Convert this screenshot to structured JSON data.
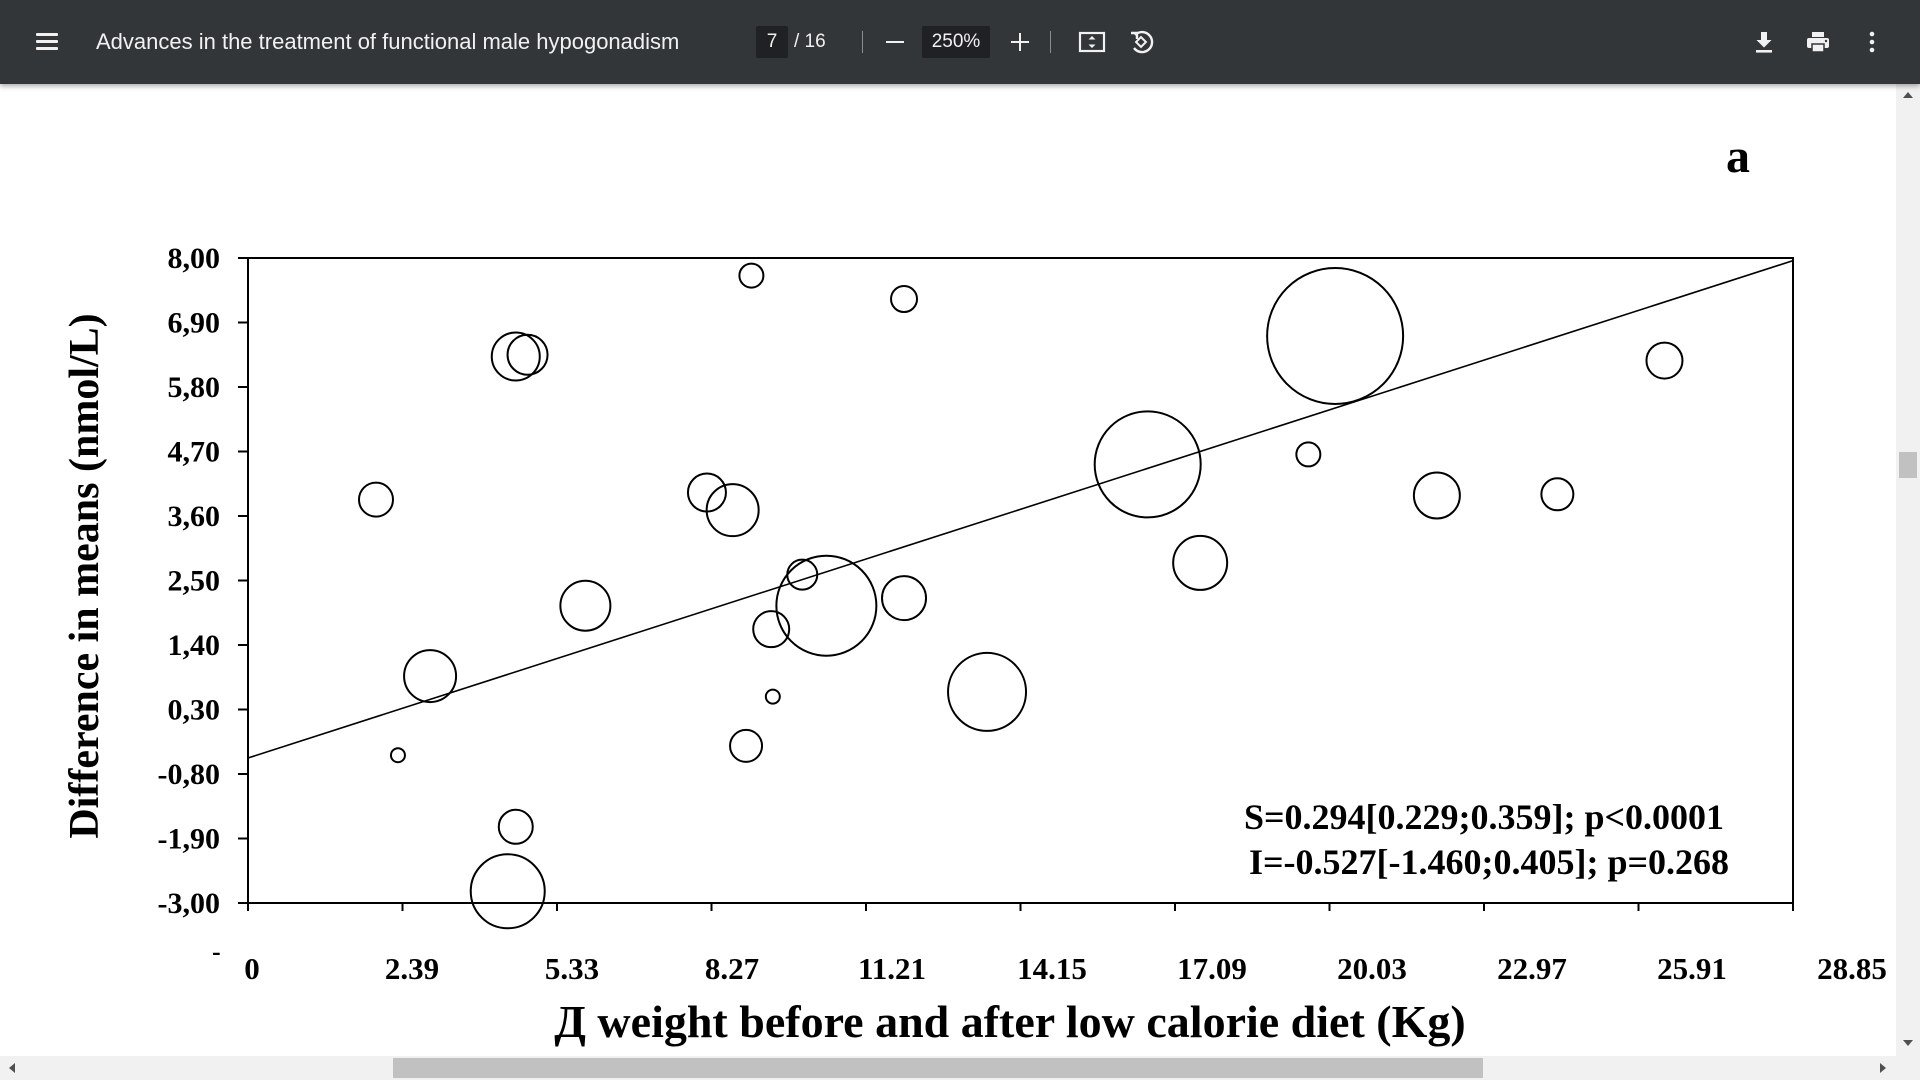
{
  "toolbar": {
    "title": "Advances in the treatment of functional male hypogonadism",
    "page_current": "7",
    "page_total": "/ 16",
    "zoom": "250%",
    "icons": [
      "menu-icon",
      "zoom-out-icon",
      "zoom-in-icon",
      "fit-page-icon",
      "rotate-icon",
      "download-icon",
      "print-icon",
      "more-options-icon"
    ]
  },
  "figure": {
    "panel_label": "a"
  },
  "chart_data": {
    "type": "scatter",
    "subtype": "bubble",
    "xlabel": "Д weight before and after low calorie diet (Kg)",
    "ylabel": "Difference in means (nmol/L)",
    "x_ticks": [
      "0",
      "2.39",
      "5.33",
      "8.27",
      "11.21",
      "14.15",
      "17.09",
      "20.03",
      "22.97",
      "25.91",
      "28.85"
    ],
    "y_ticks": [
      "8,00",
      "6,90",
      "5,80",
      "4,70",
      "3,60",
      "2,50",
      "1,40",
      "0,30",
      "-0,80",
      "-1,90",
      "-3,00"
    ],
    "xlim": [
      0,
      28.85
    ],
    "ylim": [
      -3.0,
      8.0
    ],
    "stray_mark": "-",
    "grid": false,
    "annotations": [
      "S=0.294[0.229;0.359]; p<0.0001",
      "I=-0.527[-1.460;0.405]; p=0.268"
    ],
    "regression_line": {
      "slope": 0.294,
      "intercept": -0.527
    },
    "bubbles": [
      {
        "x": 2.39,
        "y": 3.88,
        "r": 17
      },
      {
        "x": 2.8,
        "y": -0.48,
        "r": 7
      },
      {
        "x": 3.4,
        "y": 0.87,
        "r": 26
      },
      {
        "x": 5.0,
        "y": 6.32,
        "r": 24
      },
      {
        "x": 5.22,
        "y": 6.35,
        "r": 20
      },
      {
        "x": 5.0,
        "y": -1.7,
        "r": 17
      },
      {
        "x": 4.85,
        "y": -2.8,
        "r": 37
      },
      {
        "x": 6.3,
        "y": 2.07,
        "r": 25
      },
      {
        "x": 8.57,
        "y": 4.0,
        "r": 19
      },
      {
        "x": 9.05,
        "y": 3.7,
        "r": 26
      },
      {
        "x": 9.4,
        "y": 7.7,
        "r": 12
      },
      {
        "x": 9.3,
        "y": -0.32,
        "r": 16
      },
      {
        "x": 9.8,
        "y": 0.52,
        "r": 7
      },
      {
        "x": 9.77,
        "y": 1.67,
        "r": 18
      },
      {
        "x": 10.35,
        "y": 2.6,
        "r": 15
      },
      {
        "x": 10.8,
        "y": 2.07,
        "r": 50
      },
      {
        "x": 12.25,
        "y": 2.2,
        "r": 22
      },
      {
        "x": 12.25,
        "y": 7.3,
        "r": 13
      },
      {
        "x": 13.8,
        "y": 0.6,
        "r": 39
      },
      {
        "x": 16.8,
        "y": 4.48,
        "r": 53
      },
      {
        "x": 17.78,
        "y": 2.8,
        "r": 27
      },
      {
        "x": 19.8,
        "y": 4.65,
        "r": 12
      },
      {
        "x": 20.3,
        "y": 6.67,
        "r": 68
      },
      {
        "x": 22.2,
        "y": 3.95,
        "r": 23
      },
      {
        "x": 24.45,
        "y": 3.97,
        "r": 16
      },
      {
        "x": 26.45,
        "y": 6.25,
        "r": 18
      }
    ]
  }
}
